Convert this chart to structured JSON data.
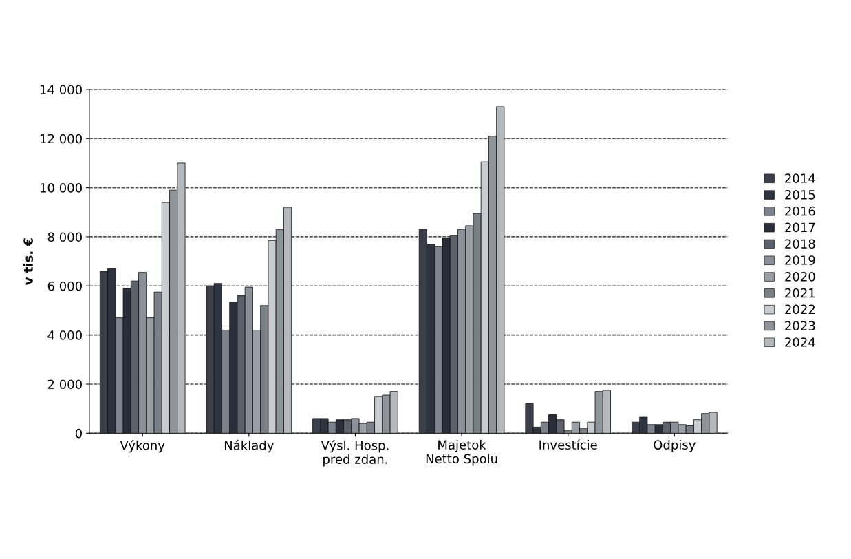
{
  "chart_data": {
    "type": "bar",
    "ylabel": "v tis. €",
    "categories": [
      "Výkony",
      "Náklady",
      "Výsl. Hosp.\npred zdan.",
      "Majetok\nNetto Spolu",
      "Investície",
      "Odpisy"
    ],
    "series": [
      {
        "name": "2014",
        "color": "#3a3f4a",
        "values": [
          6600,
          6000,
          600,
          8300,
          1200,
          450
        ]
      },
      {
        "name": "2015",
        "color": "#2e3340",
        "values": [
          6700,
          6100,
          600,
          7700,
          250,
          650
        ]
      },
      {
        "name": "2016",
        "color": "#7d838c",
        "values": [
          4700,
          4200,
          450,
          7600,
          450,
          350
        ]
      },
      {
        "name": "2017",
        "color": "#2a2e3a",
        "values": [
          5900,
          5350,
          550,
          7950,
          750,
          350
        ]
      },
      {
        "name": "2018",
        "color": "#5c626c",
        "values": [
          6200,
          5600,
          550,
          8050,
          550,
          450
        ]
      },
      {
        "name": "2019",
        "color": "#8a9098",
        "values": [
          6550,
          5950,
          600,
          8300,
          100,
          450
        ]
      },
      {
        "name": "2020",
        "color": "#9a9fa6",
        "values": [
          4700,
          4200,
          400,
          8450,
          450,
          350
        ]
      },
      {
        "name": "2021",
        "color": "#7a8088",
        "values": [
          5750,
          5200,
          450,
          8950,
          200,
          300
        ]
      },
      {
        "name": "2022",
        "color": "#c8cbd0",
        "values": [
          9400,
          7850,
          1500,
          11050,
          450,
          550
        ]
      },
      {
        "name": "2023",
        "color": "#8f949b",
        "values": [
          9900,
          8300,
          1550,
          12100,
          1700,
          800
        ]
      },
      {
        "name": "2024",
        "color": "#b5b9be",
        "values": [
          11000,
          9200,
          1700,
          13300,
          1750,
          850
        ]
      }
    ],
    "ylim": [
      0,
      14000
    ],
    "yticks": [
      0,
      {
        "value": 2000,
        "label": "2 000"
      },
      {
        "value": 4000,
        "label": "4 000"
      },
      {
        "value": 6000,
        "label": "6 000"
      },
      {
        "value": 8000,
        "label": "8 000"
      },
      {
        "value": 10000,
        "label": "10 000"
      },
      {
        "value": 12000,
        "label": "12 000"
      },
      {
        "value": 14000,
        "label": "14 000"
      }
    ],
    "grid": "y",
    "legend": "right"
  }
}
